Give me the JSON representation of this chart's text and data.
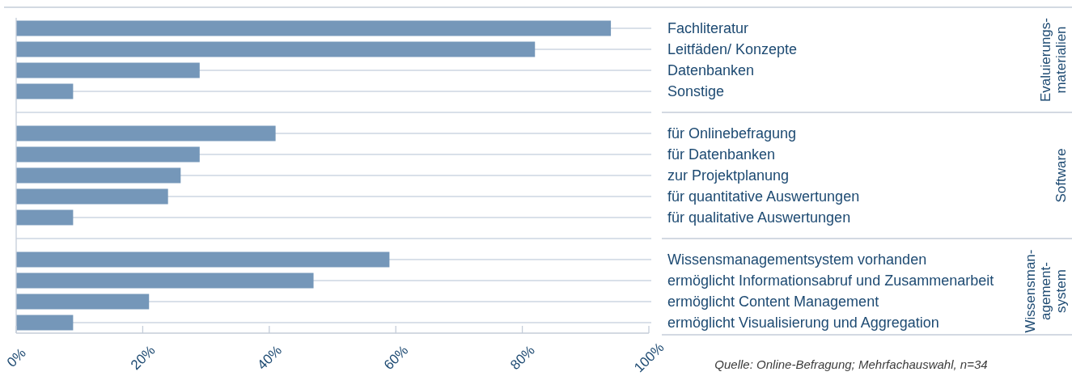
{
  "chart_data": {
    "type": "bar",
    "orientation": "horizontal",
    "categories": [
      "Fachliteratur",
      "Leitfäden/ Konzepte",
      "Datenbanken",
      "Sonstige",
      null,
      "für Onlinebefragung",
      "für Datenbanken",
      "zur Projektplanung",
      "für quantitative Auswertungen",
      "für qualitative Auswertungen",
      null,
      "Wissensmanagementsystem vorhanden",
      "ermöglicht Informationsabruf und Zusammenarbeit",
      "ermöglicht Content Management",
      "ermöglicht Visualisierung und Aggregation"
    ],
    "values": [
      94,
      82,
      29,
      9,
      null,
      41,
      29,
      26,
      24,
      9,
      null,
      59,
      47,
      21,
      9
    ],
    "color": "#7597b9",
    "xlim": [
      0,
      100
    ],
    "xticks": [
      {
        "value": 0,
        "label": "0%"
      },
      {
        "value": 20,
        "label": "20%"
      },
      {
        "value": 40,
        "label": "40%"
      },
      {
        "value": 60,
        "label": "60%"
      },
      {
        "value": 80,
        "label": "80%"
      },
      {
        "value": 100,
        "label": "100%"
      }
    ],
    "grid": "y",
    "annotations": [
      "Evaluierungs-materialien",
      "Software",
      "Wissensman-agement-system",
      "Quelle: Online-Befragung; Mehrfachauswahl, n=34"
    ]
  }
}
